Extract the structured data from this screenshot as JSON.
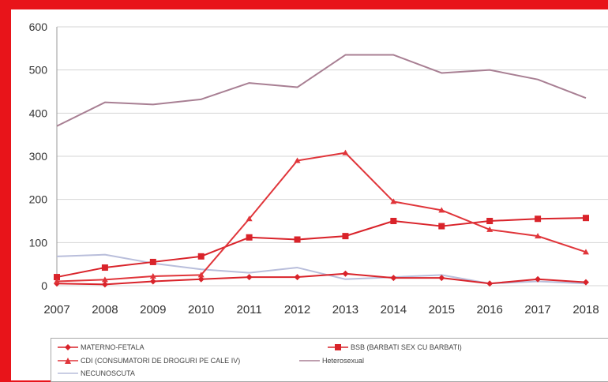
{
  "colors": {
    "background_frame": "#e8141a",
    "materno_fetala": "#d9232a",
    "bsb": "#d9232a",
    "cdi": "#e0353a",
    "heterosexual": "#a87f93",
    "necunoscuta": "#b9bedb",
    "grid": "#d4d4d4"
  },
  "chart_data": {
    "type": "line",
    "title": "",
    "xlabel": "",
    "ylabel": "",
    "ylim": [
      0,
      600
    ],
    "yticks": [
      "0",
      "100",
      "200",
      "300",
      "400",
      "500",
      "600"
    ],
    "categories": [
      "2007",
      "2008",
      "2009",
      "2010",
      "2011",
      "2012",
      "2013",
      "2014",
      "2015",
      "2016",
      "2017",
      "2018"
    ],
    "grid": true,
    "legend_position": "bottom",
    "series": [
      {
        "name": "MATERNO-FETALA",
        "marker": "diamond",
        "values": [
          5,
          3,
          10,
          15,
          20,
          20,
          28,
          18,
          18,
          5,
          15,
          8
        ]
      },
      {
        "name": "BSB (BARBATI SEX CU BARBATI)",
        "marker": "square",
        "values": [
          20,
          42,
          55,
          68,
          112,
          107,
          115,
          150,
          138,
          150,
          155,
          157
        ]
      },
      {
        "name": "CDI (CONSUMATORI DE DROGURI PE CALE IV)",
        "marker": "triangle",
        "values": [
          10,
          14,
          22,
          25,
          155,
          290,
          308,
          195,
          175,
          130,
          115,
          78
        ]
      },
      {
        "name": "Heterosexual",
        "marker": "none",
        "values": [
          370,
          425,
          420,
          432,
          470,
          460,
          535,
          535,
          493,
          500,
          478,
          435
        ]
      },
      {
        "name": "NECUNOSCUTA",
        "marker": "none",
        "values": [
          68,
          72,
          52,
          38,
          30,
          42,
          15,
          20,
          25,
          5,
          10,
          5
        ]
      }
    ]
  }
}
